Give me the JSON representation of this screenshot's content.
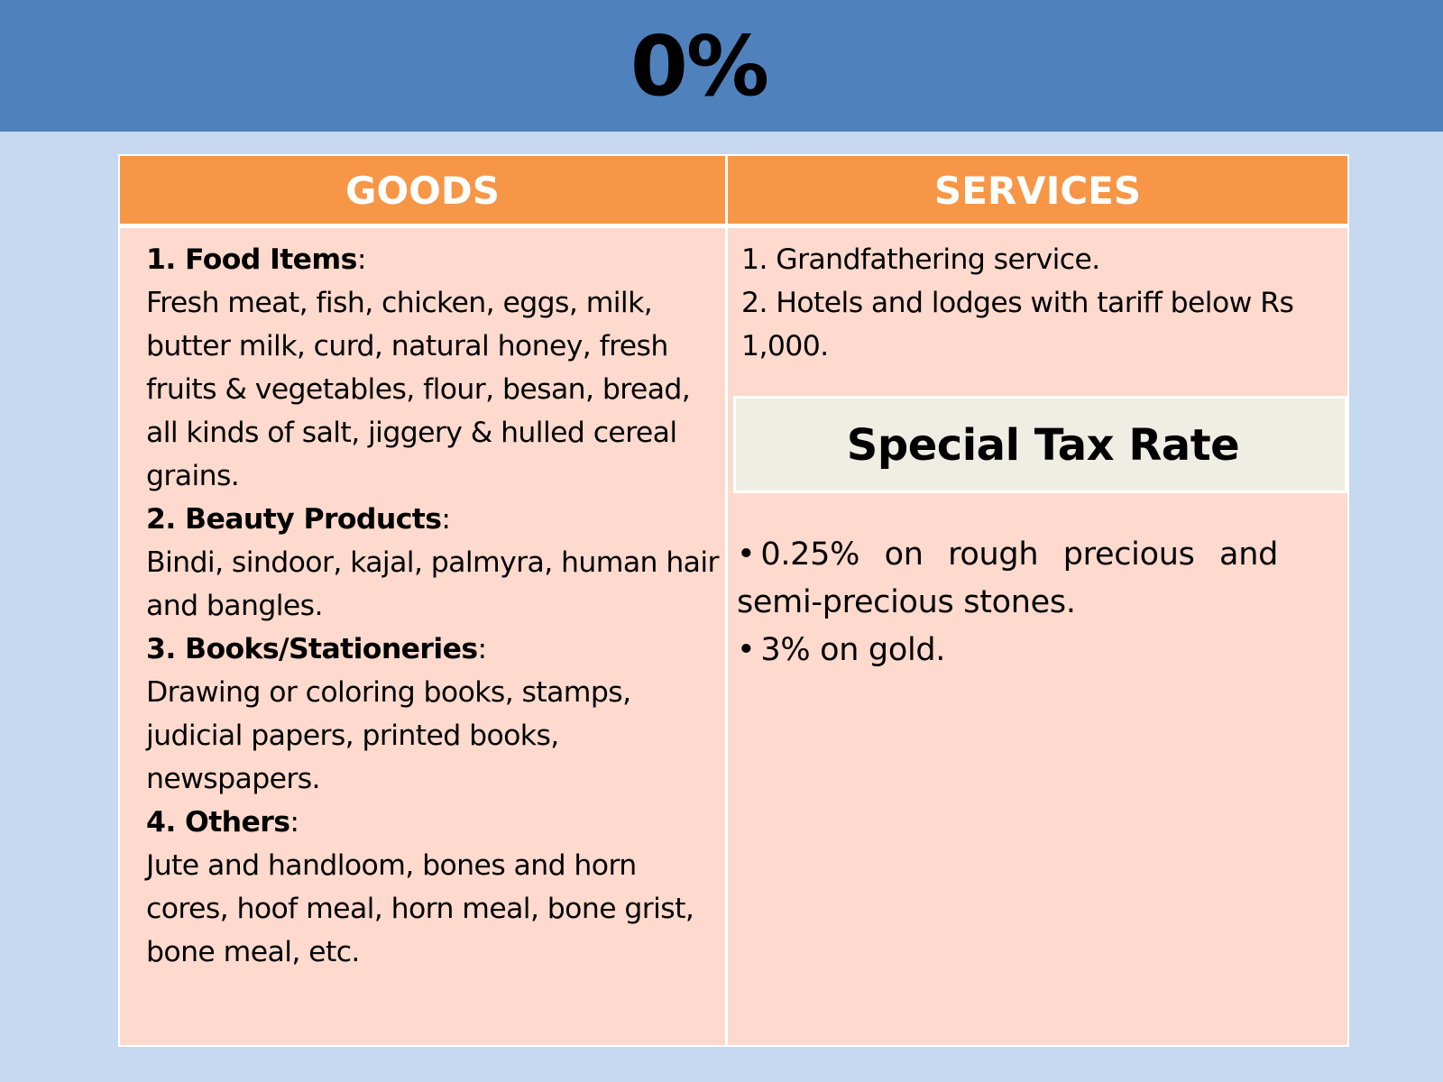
{
  "title": "0%",
  "table": {
    "headers": {
      "goods": "GOODS",
      "services": "SERVICES"
    },
    "goods": [
      {
        "title": "1. Food Items",
        "colon": ":",
        "text": "Fresh meat, fish, chicken, eggs, milk, butter milk, curd, natural honey, fresh fruits & vegetables, flour, besan, bread, all kinds of salt, jiggery & hulled cereal grains."
      },
      {
        "title": "2. Beauty Products",
        "colon": ":",
        "text": "Bindi, sindoor, kajal, palmyra, human hair and bangles."
      },
      {
        "title": "3. Books/Stationeries",
        "colon": ":",
        "text": "Drawing or coloring books, stamps, judicial papers, printed books, newspapers."
      },
      {
        "title": "4. Others",
        "colon": ":",
        "text": "Jute and handloom, bones and horn cores, hoof meal, horn meal, bone grist, bone meal, etc."
      }
    ],
    "services": [
      "1. Grandfathering service.",
      "2. Hotels and lodges with tariff below Rs 1,000."
    ],
    "special": {
      "title": "Special Tax Rate",
      "bullet": "•",
      "items": [
        "0.25% on rough precious and semi-precious stones.",
        "3% on gold."
      ]
    }
  },
  "colors": {
    "title_band": "#4f81bd",
    "background": "#c6d9f0",
    "header": "#f79646",
    "cell": "#fddacd",
    "special_box": "#efede4"
  }
}
